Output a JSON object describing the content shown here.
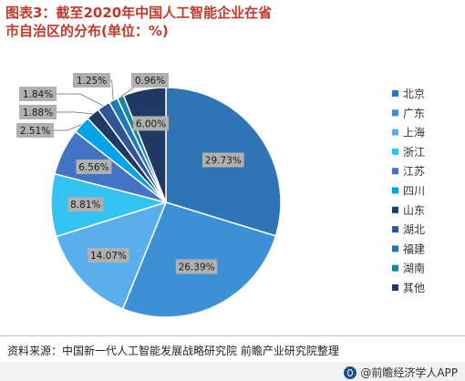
{
  "title": "图表3：截至2020年中国人工智能企业在省市自治区的分布(单位：%)",
  "source": "资料来源：中国新一代人工智能发展战略研究院 前瞻产业研究院整理",
  "brand": "@前瞻经济学人APP",
  "chart_data": {
    "type": "pie",
    "title": "图表3：截至2020年中国人工智能企业在省市自治区的分布(单位：%)",
    "unit": "%",
    "legend_position": "right",
    "slices": [
      {
        "name": "北京",
        "value": 29.73,
        "label": "29.73%",
        "color": "#2e75b6"
      },
      {
        "name": "广东",
        "value": 26.39,
        "label": "26.39%",
        "color": "#3d8fd6"
      },
      {
        "name": "上海",
        "value": 14.07,
        "label": "14.07%",
        "color": "#5aaeeb"
      },
      {
        "name": "浙江",
        "value": 8.81,
        "label": "8.81%",
        "color": "#33c3f2"
      },
      {
        "name": "江苏",
        "value": 6.56,
        "label": "6.56%",
        "color": "#4472c4"
      },
      {
        "name": "四川",
        "value": 2.51,
        "label": "2.51%",
        "color": "#00a2e8"
      },
      {
        "name": "山东",
        "value": 1.88,
        "label": "1.88%",
        "color": "#203864"
      },
      {
        "name": "湖北",
        "value": 1.84,
        "label": "1.84%",
        "color": "#2f5597"
      },
      {
        "name": "福建",
        "value": 1.25,
        "label": "1.25%",
        "color": "#1f77b4"
      },
      {
        "name": "湖南",
        "value": 0.96,
        "label": "0.96%",
        "color": "#17869e"
      },
      {
        "name": "其他",
        "value": 6.0,
        "label": "6.00%",
        "color": "#1f3864"
      }
    ]
  }
}
